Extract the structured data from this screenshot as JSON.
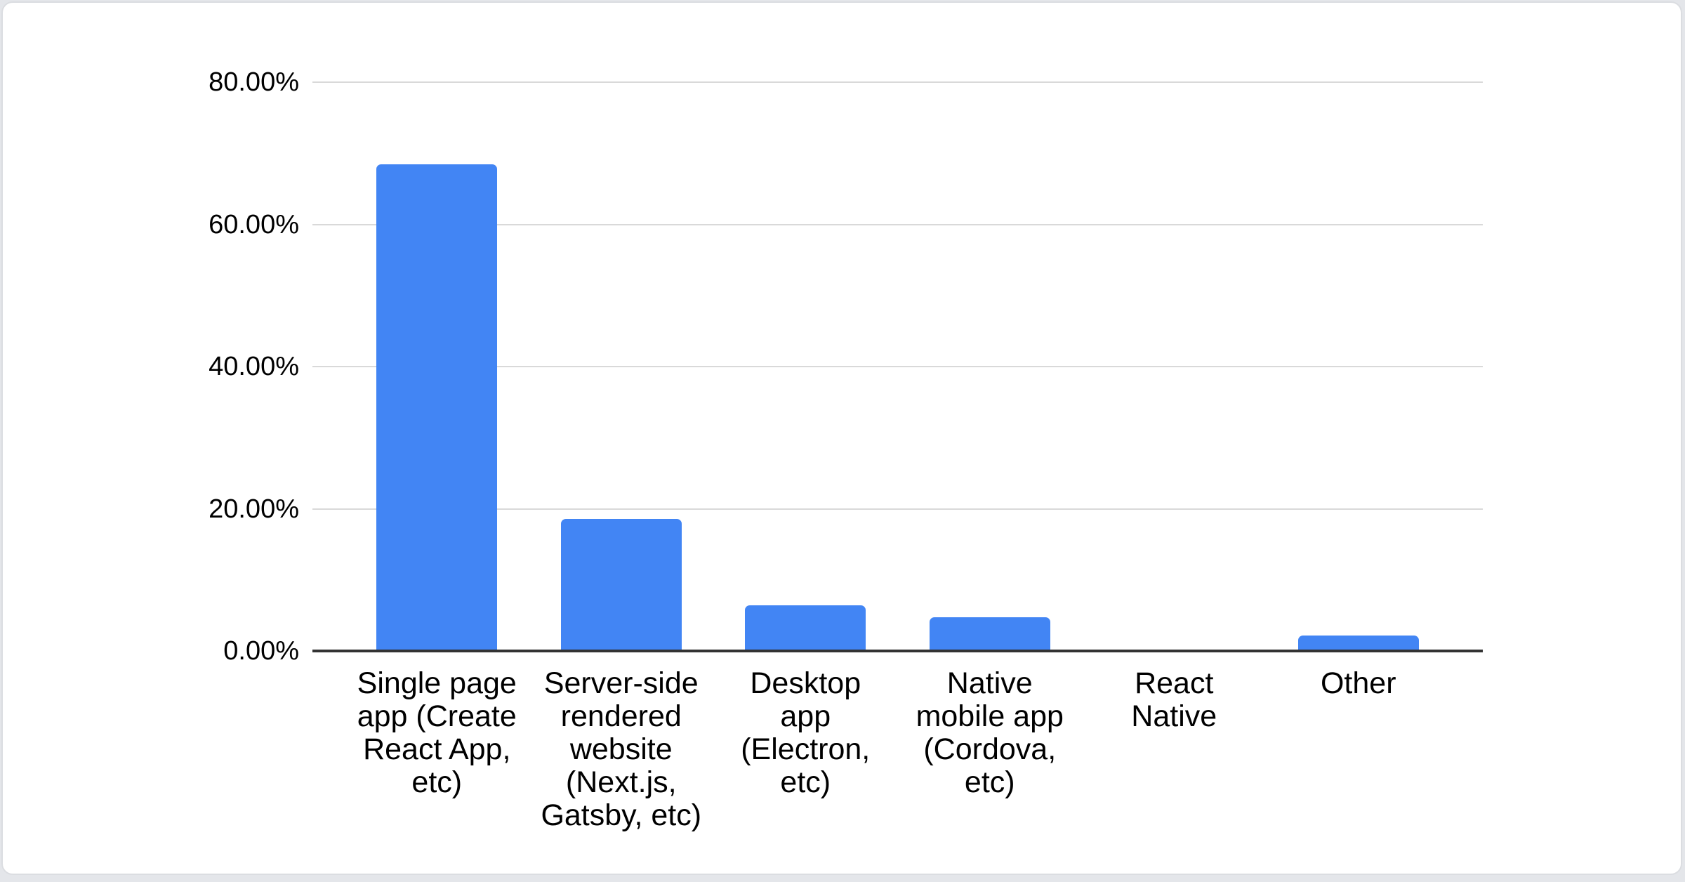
{
  "page": {
    "background": "#e4e6ea"
  },
  "card": {
    "background": "#ffffff",
    "border_color": "#dbdde1"
  },
  "chart_data": {
    "type": "bar",
    "title": "",
    "legend": "none",
    "grid": true,
    "bar_color": "#4285f4",
    "gridline_color": "#d9d9d9",
    "axis_line_color": "#333333",
    "label_color": "#000000",
    "ylim": [
      0,
      80
    ],
    "xlabel": "",
    "ylabel": "",
    "y_ticks": [
      {
        "value": 80,
        "label": "80.00%"
      },
      {
        "value": 60,
        "label": "60.00%"
      },
      {
        "value": 40,
        "label": "40.00%"
      },
      {
        "value": 20,
        "label": "20.00%"
      },
      {
        "value": 0,
        "label": "0.00%"
      }
    ],
    "categories": [
      "Single page app (Create React App, etc)",
      "Server-side rendered website (Next.js, Gatsby, etc)",
      "Desktop app (Electron, etc)",
      "Native mobile app (Cordova, etc)",
      "React Native",
      "Other"
    ],
    "category_lines": [
      [
        "Single page",
        "app (Create",
        "React App,",
        "etc)"
      ],
      [
        "Server-side",
        "rendered",
        "website",
        "(Next.js,",
        "Gatsby, etc)"
      ],
      [
        "Desktop",
        "app",
        "(Electron,",
        "etc)"
      ],
      [
        "Native",
        "mobile app",
        "(Cordova,",
        "etc)"
      ],
      [
        "React",
        "Native"
      ],
      [
        "Other"
      ]
    ],
    "values": [
      68.4,
      18.6,
      6.4,
      4.7,
      0,
      2.2
    ],
    "value_unit": "%"
  }
}
